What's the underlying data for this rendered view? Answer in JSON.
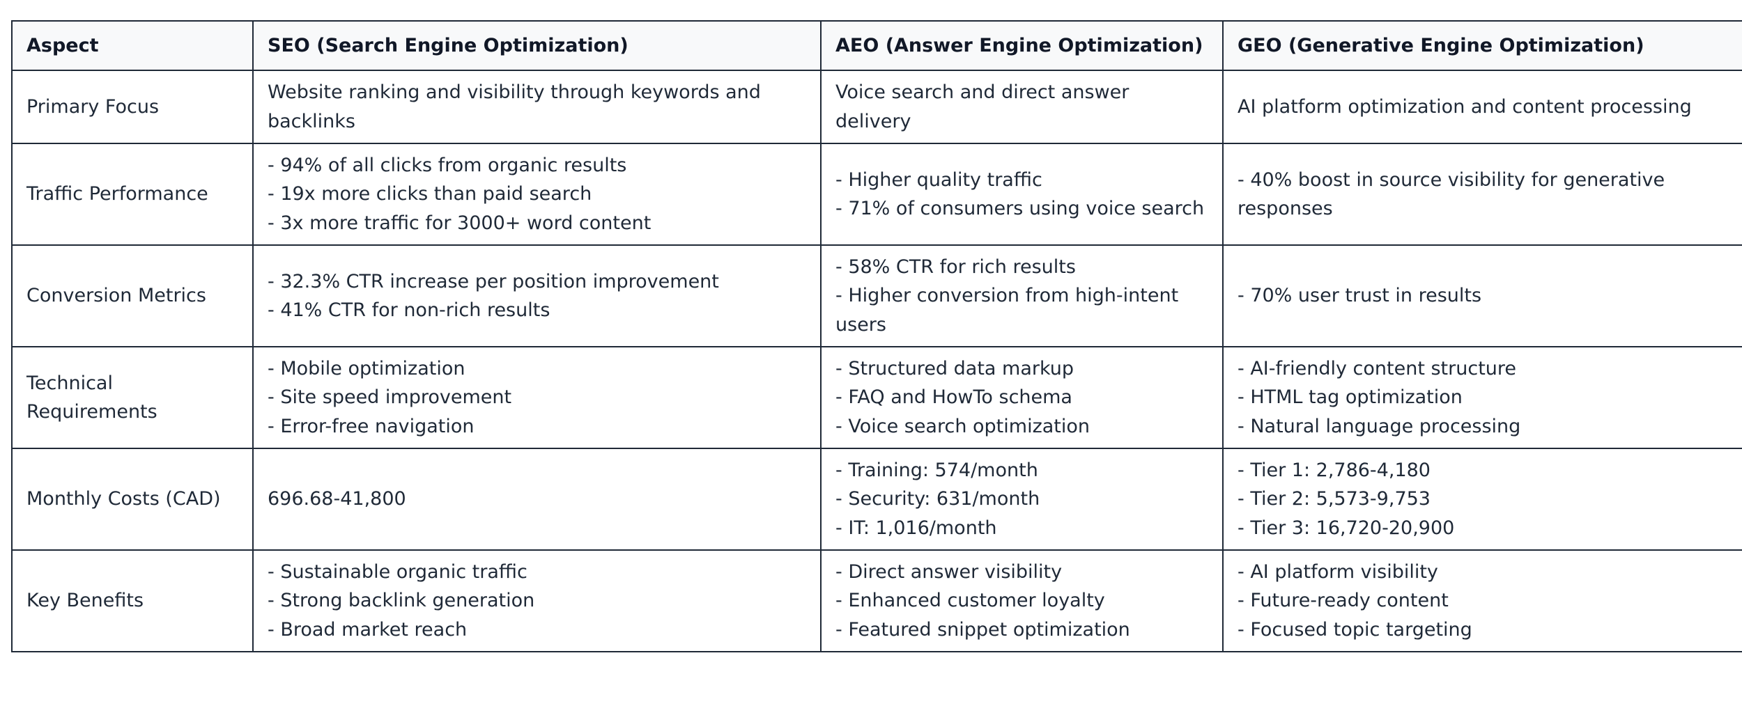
{
  "headers": [
    "Aspect",
    "SEO (Search Engine Optimization)",
    "AEO (Answer Engine Optimization)",
    "GEO (Generative Engine Optimization)"
  ],
  "rows": [
    {
      "aspect": "Primary Focus",
      "seo": [
        "Website ranking and visibility through keywords and backlinks"
      ],
      "aeo": [
        "Voice search and direct answer delivery"
      ],
      "geo": [
        "AI platform optimization and content processing"
      ]
    },
    {
      "aspect": "Traffic Performance",
      "seo": [
        "- 94% of all clicks from organic results",
        "- 19x more clicks than paid search",
        "- 3x more traffic for 3000+ word content"
      ],
      "aeo": [
        "- Higher quality traffic",
        "- 71% of consumers using voice search"
      ],
      "geo": [
        "- 40% boost in source visibility for generative responses"
      ]
    },
    {
      "aspect": "Conversion Metrics",
      "seo": [
        "- 32.3% CTR increase per position improvement",
        "- 41% CTR for non-rich results"
      ],
      "aeo": [
        "- 58% CTR for rich results",
        "- Higher conversion from high-intent users"
      ],
      "geo": [
        "- 70% user trust in results"
      ]
    },
    {
      "aspect": "Technical Requirements",
      "seo": [
        "- Mobile optimization",
        "- Site speed improvement",
        "- Error-free navigation"
      ],
      "aeo": [
        "- Structured data markup",
        "- FAQ and HowTo schema",
        "- Voice search optimization"
      ],
      "geo": [
        "- AI-friendly content structure",
        "- HTML tag optimization",
        "- Natural language processing"
      ]
    },
    {
      "aspect": "Monthly Costs (CAD)",
      "seo": [
        "696.68-41,800"
      ],
      "aeo": [
        "- Training: 574/month",
        "- Security: 631/month",
        "- IT: 1,016/month"
      ],
      "geo": [
        "- Tier 1: 2,786-4,180",
        "- Tier 2: 5,573-9,753",
        "- Tier 3: 16,720-20,900"
      ]
    },
    {
      "aspect": "Key Benefits",
      "seo": [
        "- Sustainable organic traffic",
        "- Strong backlink generation",
        "- Broad market reach"
      ],
      "aeo": [
        "- Direct answer visibility",
        "- Enhanced customer loyalty",
        "- Featured snippet optimization"
      ],
      "geo": [
        "- AI platform visibility",
        "- Future-ready content",
        "- Focused topic targeting"
      ]
    }
  ]
}
